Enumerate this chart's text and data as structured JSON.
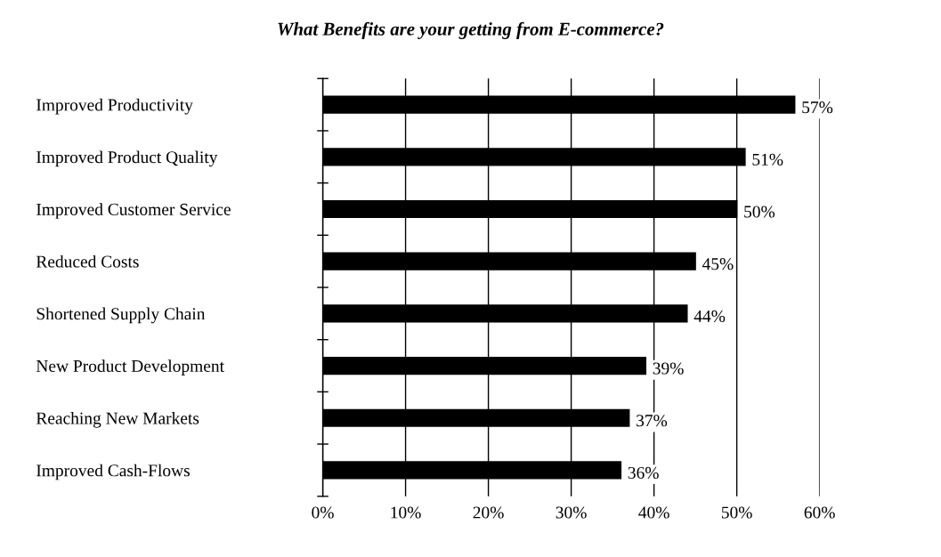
{
  "chart_data": {
    "type": "bar",
    "orientation": "horizontal",
    "title": "What Benefits are your getting from E-commerce?",
    "categories": [
      "Improved Productivity",
      "Improved Product Quality",
      "Improved Customer Service",
      "Reduced Costs",
      "Shortened Supply Chain",
      "New Product Development",
      "Reaching New Markets",
      "Improved Cash-Flows"
    ],
    "values": [
      57,
      51,
      50,
      45,
      44,
      39,
      37,
      36
    ],
    "value_labels": [
      "57%",
      "51%",
      "50%",
      "45%",
      "44%",
      "39%",
      "37%",
      "36%"
    ],
    "color": "#000000",
    "xlim": [
      0,
      60
    ],
    "xticks": [
      {
        "value": 0,
        "label": "0%"
      },
      {
        "value": 10,
        "label": "10%"
      },
      {
        "value": 20,
        "label": "20%"
      },
      {
        "value": 30,
        "label": "30%"
      },
      {
        "value": 40,
        "label": "40%"
      },
      {
        "value": 50,
        "label": "50%"
      },
      {
        "value": 60,
        "label": "60%"
      }
    ],
    "grid": "x",
    "legend": false
  }
}
